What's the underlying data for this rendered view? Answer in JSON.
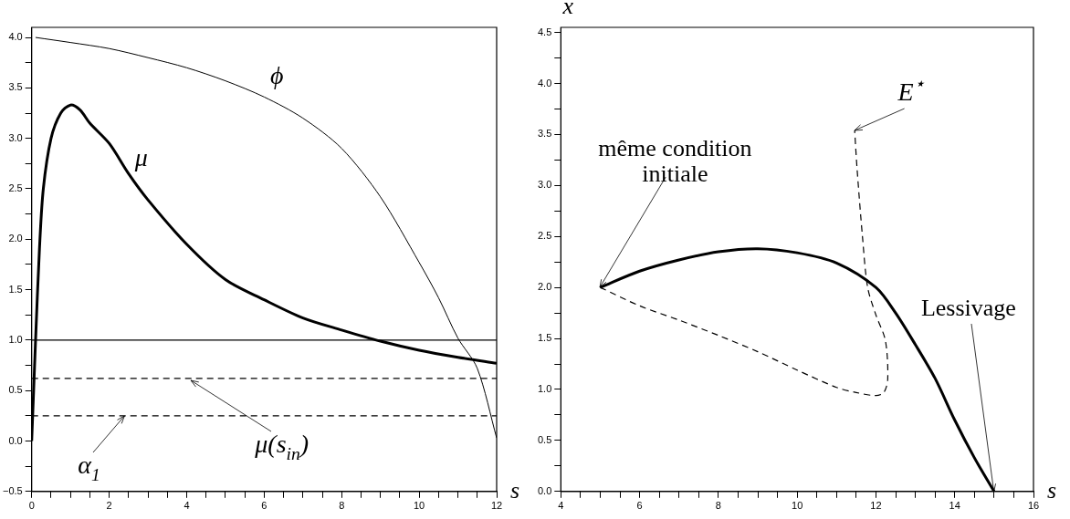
{
  "chart_data": [
    {
      "type": "line",
      "xlabel": "s",
      "xlim": [
        0,
        12
      ],
      "ylim": [
        -0.5,
        4.1
      ],
      "xticks": [
        0,
        {
          "value": 0.5,
          "label": null
        },
        {
          "value": 1,
          "label": null
        },
        {
          "value": 1.5,
          "label": null
        },
        2,
        {
          "value": 2.5,
          "label": null
        },
        {
          "value": 3,
          "label": null
        },
        {
          "value": 3.5,
          "label": null
        },
        4,
        {
          "value": 4.5,
          "label": null
        },
        {
          "value": 5,
          "label": null
        },
        {
          "value": 5.5,
          "label": null
        },
        6,
        {
          "value": 6.5,
          "label": null
        },
        {
          "value": 7,
          "label": null
        },
        {
          "value": 7.5,
          "label": null
        },
        8,
        {
          "value": 8.5,
          "label": null
        },
        {
          "value": 9,
          "label": null
        },
        {
          "value": 9.5,
          "label": null
        },
        10,
        {
          "value": 10.5,
          "label": null
        },
        {
          "value": 11,
          "label": null
        },
        {
          "value": 11.5,
          "label": null
        },
        12
      ],
      "yticks": [
        {
          "value": -0.5,
          "label": "−0.5"
        },
        {
          "value": -0.25,
          "label": null
        },
        {
          "value": 0,
          "label": "0.0"
        },
        {
          "value": 0.25,
          "label": null
        },
        {
          "value": 0.5,
          "label": "0.5"
        },
        {
          "value": 0.75,
          "label": null
        },
        {
          "value": 1,
          "label": "1.0"
        },
        {
          "value": 1.25,
          "label": null
        },
        {
          "value": 1.5,
          "label": "1.5"
        },
        {
          "value": 1.75,
          "label": null
        },
        {
          "value": 2,
          "label": "2.0"
        },
        {
          "value": 2.25,
          "label": null
        },
        {
          "value": 2.5,
          "label": "2.5"
        },
        {
          "value": 2.75,
          "label": null
        },
        {
          "value": 3,
          "label": "3.0"
        },
        {
          "value": 3.25,
          "label": null
        },
        {
          "value": 3.5,
          "label": "3.5"
        },
        {
          "value": 3.75,
          "label": null
        },
        {
          "value": 4,
          "label": "4.0"
        }
      ],
      "series": [
        {
          "name": "ϕ",
          "color": "#000000",
          "line_style": "solid",
          "x": [
            0.1,
            1,
            2,
            3,
            4,
            5,
            6,
            7,
            8,
            9,
            10,
            10.5,
            11,
            11.5,
            12
          ],
          "values": [
            4.0,
            3.95,
            3.89,
            3.8,
            3.7,
            3.57,
            3.41,
            3.2,
            2.9,
            2.42,
            1.77,
            1.42,
            1.02,
            0.72,
            0.03
          ]
        },
        {
          "name": "μ",
          "color": "#000000",
          "line_style": "solid",
          "x": [
            0,
            0.05,
            0.1,
            0.2,
            0.3,
            0.5,
            0.75,
            1,
            1.25,
            1.5,
            2,
            2.5,
            3,
            4,
            5,
            6,
            7,
            8,
            9,
            10,
            11,
            12
          ],
          "values": [
            0,
            0.5,
            1.0,
            1.9,
            2.5,
            3.0,
            3.25,
            3.33,
            3.28,
            3.15,
            2.95,
            2.65,
            2.39,
            1.95,
            1.6,
            1.4,
            1.22,
            1.1,
            0.99,
            0.9,
            0.83,
            0.77
          ]
        }
      ],
      "ref_lines": [
        {
          "axis": "y",
          "value": 1,
          "line_style": "solid",
          "color": "#000000"
        },
        {
          "axis": "y",
          "value": 0.62,
          "line_style": "dashed",
          "color": "#000000"
        },
        {
          "axis": "y",
          "value": 0.25,
          "line_style": "dashed",
          "color": "#000000"
        }
      ],
      "annotations": [
        {
          "text": "μ(s$_{in}$)",
          "x": 4.1,
          "y": 0.6
        },
        {
          "text": "α$_{1}$",
          "x": 2.4,
          "y": 0.25
        }
      ]
    },
    {
      "type": "line",
      "xlabel": "s",
      "ylabel": "x",
      "xlim": [
        4,
        16
      ],
      "ylim": [
        0,
        4.55
      ],
      "xticks": [
        4,
        {
          "value": 4.5,
          "label": null
        },
        {
          "value": 5,
          "label": null
        },
        {
          "value": 5.5,
          "label": null
        },
        6,
        {
          "value": 6.5,
          "label": null
        },
        {
          "value": 7,
          "label": null
        },
        {
          "value": 7.5,
          "label": null
        },
        8,
        {
          "value": 8.5,
          "label": null
        },
        {
          "value": 9,
          "label": null
        },
        {
          "value": 9.5,
          "label": null
        },
        10,
        {
          "value": 10.5,
          "label": null
        },
        {
          "value": 11,
          "label": null
        },
        {
          "value": 11.5,
          "label": null
        },
        12,
        {
          "value": 12.5,
          "label": null
        },
        {
          "value": 13,
          "label": null
        },
        {
          "value": 13.5,
          "label": null
        },
        14,
        {
          "value": 14.5,
          "label": null
        },
        {
          "value": 15,
          "label": null
        },
        {
          "value": 15.5,
          "label": null
        },
        16
      ],
      "yticks": [
        {
          "value": 0,
          "label": "0.0"
        },
        {
          "value": 0.25,
          "label": null
        },
        {
          "value": 0.5,
          "label": "0.5"
        },
        {
          "value": 0.75,
          "label": null
        },
        {
          "value": 1,
          "label": "1.0"
        },
        {
          "value": 1.25,
          "label": null
        },
        {
          "value": 1.5,
          "label": "1.5"
        },
        {
          "value": 1.75,
          "label": null
        },
        {
          "value": 2,
          "label": "2.0"
        },
        {
          "value": 2.25,
          "label": null
        },
        {
          "value": 2.5,
          "label": "2.5"
        },
        {
          "value": 2.75,
          "label": null
        },
        {
          "value": 3,
          "label": "3.0"
        },
        {
          "value": 3.25,
          "label": null
        },
        {
          "value": 3.5,
          "label": "3.5"
        },
        {
          "value": 3.75,
          "label": null
        },
        {
          "value": 4,
          "label": "4.0"
        },
        {
          "value": 4.25,
          "label": null
        },
        {
          "value": 4.5,
          "label": "4.5"
        }
      ],
      "series": [
        {
          "color": "#000000",
          "line_style": "solid",
          "x": [
            5,
            6,
            7,
            8,
            9,
            10,
            11,
            12,
            12.5,
            13,
            13.5,
            14,
            14.5,
            15
          ],
          "values": [
            2.0,
            2.16,
            2.27,
            2.35,
            2.38,
            2.34,
            2.24,
            2.0,
            1.75,
            1.44,
            1.11,
            0.7,
            0.33,
            0
          ]
        },
        {
          "color": "#000000",
          "line_style": "dashed",
          "x": [
            5,
            6,
            7,
            8,
            9,
            10,
            11,
            11.5,
            12,
            12.2,
            12.3,
            12.24,
            12.0,
            11.79,
            11.66,
            11.52,
            11.46
          ],
          "values": [
            2.0,
            1.82,
            1.68,
            1.53,
            1.37,
            1.19,
            1.02,
            0.97,
            0.94,
            0.97,
            1.1,
            1.48,
            1.73,
            2.0,
            2.49,
            3.17,
            3.54
          ]
        }
      ],
      "annotations": [
        {
          "text": "même condition initiale",
          "x": 5,
          "y": 2.0
        },
        {
          "text": "E$^{⋆}$",
          "x": 11.46,
          "y": 3.54
        },
        {
          "text": "Lessivage",
          "x": 15,
          "y": 0
        }
      ]
    }
  ]
}
